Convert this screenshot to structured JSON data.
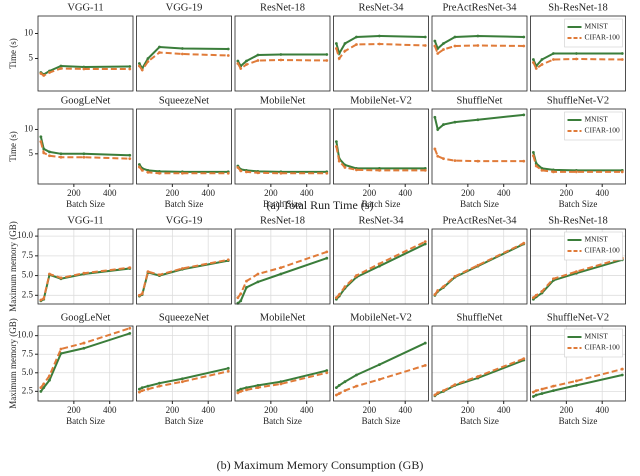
{
  "captions": [
    "(a) Total Run Time (s)",
    "(b) Maximum Memory Consumption (GB)"
  ],
  "chart_data": [
    {
      "type": "line",
      "title": "VGG-11",
      "ylabel": "Time (s)",
      "x": [
        16,
        32,
        64,
        128,
        256,
        512
      ],
      "xlim": [
        0,
        530
      ],
      "ylim": [
        -1.5,
        13.5
      ],
      "yticks": [
        5,
        10
      ],
      "series": [
        {
          "color": "#3a7d3a",
          "values": [
            2.2,
            1.8,
            2.5,
            3.5,
            3.3,
            3.4
          ]
        },
        {
          "color": "#e07b39",
          "dash": true,
          "values": [
            2.0,
            1.6,
            2.2,
            3.0,
            2.9,
            2.9
          ]
        }
      ]
    },
    {
      "type": "line",
      "title": "VGG-19",
      "x": [
        16,
        32,
        64,
        128,
        256,
        512
      ],
      "xlim": [
        0,
        530
      ],
      "ylim": [
        -1.5,
        13.5
      ],
      "series": [
        {
          "color": "#3a7d3a",
          "values": [
            4,
            3,
            5,
            7.3,
            7,
            6.9
          ]
        },
        {
          "color": "#e07b39",
          "dash": true,
          "values": [
            3.5,
            2.7,
            4.4,
            6.2,
            5.9,
            5.6
          ]
        }
      ]
    },
    {
      "type": "line",
      "title": "ResNet-18",
      "x": [
        16,
        32,
        64,
        128,
        256,
        512
      ],
      "xlim": [
        0,
        530
      ],
      "ylim": [
        -1.5,
        13.5
      ],
      "series": [
        {
          "color": "#3a7d3a",
          "values": [
            4.5,
            3.5,
            4.5,
            5.7,
            5.8,
            5.8
          ]
        },
        {
          "color": "#e07b39",
          "dash": true,
          "values": [
            4,
            3,
            3.8,
            4.6,
            4.7,
            4.6
          ]
        }
      ]
    },
    {
      "type": "line",
      "title": "ResNet-34",
      "x": [
        16,
        32,
        64,
        128,
        256,
        512
      ],
      "xlim": [
        0,
        530
      ],
      "ylim": [
        -1.5,
        13.5
      ],
      "series": [
        {
          "color": "#3a7d3a",
          "values": [
            8,
            6,
            8,
            9.3,
            9.5,
            9.3
          ]
        },
        {
          "color": "#e07b39",
          "dash": true,
          "values": [
            7,
            5,
            6.5,
            7.8,
            7.9,
            7.6
          ]
        }
      ]
    },
    {
      "type": "line",
      "title": "PreActResNet-34",
      "x": [
        16,
        32,
        64,
        128,
        256,
        512
      ],
      "xlim": [
        0,
        530
      ],
      "ylim": [
        -1.5,
        13.5
      ],
      "series": [
        {
          "color": "#3a7d3a",
          "values": [
            8.5,
            7,
            8,
            9.3,
            9.5,
            9.3
          ]
        },
        {
          "color": "#e07b39",
          "dash": true,
          "values": [
            7.5,
            6,
            6.8,
            7.5,
            7.6,
            7.5
          ]
        }
      ]
    },
    {
      "type": "line",
      "title": "Sh-ResNet-18",
      "legend": "upper right",
      "x": [
        16,
        32,
        64,
        128,
        256,
        512
      ],
      "xlim": [
        0,
        530
      ],
      "ylim": [
        -1.5,
        13.5
      ],
      "series": [
        {
          "name": "MNIST",
          "color": "#3a7d3a",
          "values": [
            4.8,
            3.5,
            4.8,
            6,
            6,
            6
          ]
        },
        {
          "name": "CIFAR-100",
          "color": "#e07b39",
          "dash": true,
          "values": [
            4.2,
            3,
            3.8,
            4.8,
            4.9,
            4.8
          ]
        }
      ]
    },
    {
      "type": "line",
      "title": "GoogLeNet",
      "ylabel": "Time (s)",
      "xlabel": "Batch Size",
      "x": [
        16,
        32,
        64,
        128,
        256,
        512
      ],
      "xlim": [
        0,
        530
      ],
      "xticks": [
        200,
        400
      ],
      "ylim": [
        -1.2,
        14.2
      ],
      "yticks": [
        5,
        10
      ],
      "series": [
        {
          "color": "#3a7d3a",
          "values": [
            8.5,
            6,
            5.4,
            5,
            5,
            4.7
          ]
        },
        {
          "color": "#e07b39",
          "dash": true,
          "values": [
            7.5,
            5.2,
            4.6,
            4.3,
            4.3,
            4.0
          ]
        }
      ]
    },
    {
      "type": "line",
      "title": "SqueezeNet",
      "xlabel": "Batch Size",
      "x": [
        16,
        32,
        64,
        128,
        256,
        512
      ],
      "xlim": [
        0,
        530
      ],
      "xticks": [
        200,
        400
      ],
      "ylim": [
        -1.2,
        14.2
      ],
      "series": [
        {
          "color": "#3a7d3a",
          "values": [
            2.8,
            2,
            1.6,
            1.4,
            1.3,
            1.3
          ]
        },
        {
          "color": "#e07b39",
          "dash": true,
          "values": [
            2.3,
            1.6,
            1.2,
            1,
            1,
            1
          ]
        }
      ]
    },
    {
      "type": "line",
      "title": "MobileNet",
      "xlabel": "Batch Size",
      "x": [
        16,
        32,
        64,
        128,
        256,
        512
      ],
      "xlim": [
        0,
        530
      ],
      "xticks": [
        200,
        400
      ],
      "ylim": [
        -1.2,
        14.2
      ],
      "series": [
        {
          "color": "#3a7d3a",
          "values": [
            2.5,
            1.8,
            1.6,
            1.4,
            1.3,
            1.3
          ]
        },
        {
          "color": "#e07b39",
          "dash": true,
          "values": [
            2.2,
            1.5,
            1.3,
            1.1,
            1,
            1
          ]
        }
      ]
    },
    {
      "type": "line",
      "title": "MobileNet-V2",
      "xlabel": "Batch Size",
      "x": [
        16,
        32,
        64,
        128,
        256,
        512
      ],
      "xlim": [
        0,
        530
      ],
      "xticks": [
        200,
        400
      ],
      "ylim": [
        -1.2,
        14.2
      ],
      "series": [
        {
          "color": "#3a7d3a",
          "values": [
            7.5,
            4,
            2.7,
            2,
            2,
            2
          ]
        },
        {
          "color": "#e07b39",
          "dash": true,
          "values": [
            6.5,
            3.5,
            2.2,
            1.7,
            1.6,
            1.6
          ]
        }
      ]
    },
    {
      "type": "line",
      "title": "ShuffleNet",
      "xlabel": "Batch Size",
      "x": [
        16,
        32,
        64,
        128,
        256,
        512
      ],
      "xlim": [
        0,
        530
      ],
      "xticks": [
        200,
        400
      ],
      "ylim": [
        -1.2,
        14.2
      ],
      "series": [
        {
          "color": "#3a7d3a",
          "values": [
            12.5,
            10,
            11,
            11.5,
            12,
            13
          ]
        },
        {
          "color": "#e07b39",
          "dash": true,
          "values": [
            6,
            4.5,
            4,
            3.6,
            3.5,
            3.5
          ]
        }
      ]
    },
    {
      "type": "line",
      "title": "ShuffleNet-V2",
      "xlabel": "Batch Size",
      "legend": "upper right",
      "x": [
        16,
        32,
        64,
        128,
        256,
        512
      ],
      "xlim": [
        0,
        530
      ],
      "xticks": [
        200,
        400
      ],
      "ylim": [
        -1.2,
        14.2
      ],
      "series": [
        {
          "name": "MNIST",
          "color": "#3a7d3a",
          "values": [
            5.3,
            3,
            2,
            1.7,
            1.6,
            1.6
          ]
        },
        {
          "name": "CIFAR-100",
          "color": "#e07b39",
          "dash": true,
          "values": [
            4.6,
            2.5,
            1.6,
            1.3,
            1.3,
            1.3
          ]
        }
      ]
    },
    {
      "type": "line",
      "title": "VGG-11",
      "ylabel": "Maximum memory (GB)",
      "grid": true,
      "x": [
        16,
        32,
        64,
        128,
        256,
        512
      ],
      "xlim": [
        0,
        530
      ],
      "ylim": [
        1.4,
        10.9
      ],
      "yticks": [
        2.5,
        {
          "value": 5,
          "label": "5.0"
        },
        7.5,
        {
          "value": 10,
          "label": "10.0"
        }
      ],
      "series": [
        {
          "color": "#3a7d3a",
          "values": [
            1.8,
            2,
            5.1,
            4.6,
            5.2,
            5.9
          ]
        },
        {
          "color": "#e07b39",
          "dash": true,
          "values": [
            1.9,
            2.1,
            5.2,
            4.7,
            5.3,
            6.0
          ]
        }
      ]
    },
    {
      "type": "line",
      "title": "VGG-19",
      "grid": true,
      "x": [
        16,
        32,
        64,
        128,
        256,
        512
      ],
      "xlim": [
        0,
        530
      ],
      "ylim": [
        1.4,
        10.9
      ],
      "series": [
        {
          "color": "#3a7d3a",
          "values": [
            2.4,
            2.6,
            5.4,
            5.0,
            5.8,
            6.9
          ]
        },
        {
          "color": "#e07b39",
          "dash": true,
          "values": [
            2.5,
            2.7,
            5.5,
            5.1,
            5.9,
            7.0
          ]
        }
      ]
    },
    {
      "type": "line",
      "title": "ResNet-18",
      "grid": true,
      "x": [
        16,
        32,
        64,
        128,
        256,
        512
      ],
      "xlim": [
        0,
        530
      ],
      "ylim": [
        1.4,
        10.9
      ],
      "series": [
        {
          "color": "#3a7d3a",
          "values": [
            1.5,
            1.8,
            3.5,
            4.2,
            5.2,
            7.2
          ]
        },
        {
          "color": "#e07b39",
          "dash": true,
          "values": [
            2.2,
            2.7,
            4.3,
            5.2,
            6,
            8
          ]
        }
      ]
    },
    {
      "type": "line",
      "title": "ResNet-34",
      "grid": true,
      "x": [
        16,
        32,
        64,
        128,
        256,
        512
      ],
      "xlim": [
        0,
        530
      ],
      "ylim": [
        1.4,
        10.9
      ],
      "series": [
        {
          "color": "#3a7d3a",
          "values": [
            2.0,
            2.4,
            3.4,
            4.8,
            6.2,
            9.0
          ]
        },
        {
          "color": "#e07b39",
          "dash": true,
          "values": [
            2.2,
            2.6,
            3.6,
            5.0,
            6.5,
            9.3
          ]
        }
      ]
    },
    {
      "type": "line",
      "title": "PreActResNet-34",
      "grid": true,
      "x": [
        16,
        32,
        64,
        128,
        256,
        512
      ],
      "xlim": [
        0,
        530
      ],
      "ylim": [
        1.4,
        10.9
      ],
      "series": [
        {
          "color": "#3a7d3a",
          "values": [
            2.5,
            3,
            3.5,
            4.8,
            6.2,
            9
          ]
        },
        {
          "color": "#e07b39",
          "dash": true,
          "values": [
            2.6,
            3.1,
            3.6,
            4.9,
            6.3,
            9.1
          ]
        }
      ]
    },
    {
      "type": "line",
      "title": "Sh-ResNet-18",
      "grid": true,
      "legend": "upper right",
      "x": [
        16,
        32,
        64,
        128,
        256,
        512
      ],
      "xlim": [
        0,
        530
      ],
      "ylim": [
        1.4,
        10.9
      ],
      "series": [
        {
          "name": "MNIST",
          "color": "#3a7d3a",
          "values": [
            2,
            2.3,
            2.8,
            4.4,
            5.3,
            7
          ]
        },
        {
          "name": "CIFAR-100",
          "color": "#e07b39",
          "dash": true,
          "values": [
            2.2,
            2.5,
            3,
            4.6,
            5.5,
            7.2
          ]
        }
      ]
    },
    {
      "type": "line",
      "title": "GoogLeNet",
      "ylabel": "Maximum memory (GB)",
      "xlabel": "Batch Size",
      "grid": true,
      "x": [
        16,
        32,
        64,
        128,
        256,
        512
      ],
      "xlim": [
        0,
        530
      ],
      "xticks": [
        200,
        400
      ],
      "ylim": [
        1.2,
        11.3
      ],
      "yticks": [
        2.5,
        {
          "value": 5,
          "label": "5.0"
        },
        7.5,
        {
          "value": 10,
          "label": "10.0"
        }
      ],
      "series": [
        {
          "color": "#3a7d3a",
          "values": [
            2.5,
            3,
            4,
            7.6,
            8.3,
            10.3
          ]
        },
        {
          "color": "#e07b39",
          "dash": true,
          "values": [
            3,
            3.5,
            4.6,
            8.2,
            9,
            11
          ]
        }
      ]
    },
    {
      "type": "line",
      "title": "SqueezeNet",
      "xlabel": "Batch Size",
      "grid": true,
      "x": [
        16,
        32,
        64,
        128,
        256,
        512
      ],
      "xlim": [
        0,
        530
      ],
      "xticks": [
        200,
        400
      ],
      "ylim": [
        1.2,
        11.3
      ],
      "series": [
        {
          "color": "#3a7d3a",
          "values": [
            2.8,
            3,
            3.2,
            3.6,
            4.2,
            5.6
          ]
        },
        {
          "color": "#e07b39",
          "dash": true,
          "values": [
            2.4,
            2.6,
            2.8,
            3.2,
            3.8,
            5.2
          ]
        }
      ]
    },
    {
      "type": "line",
      "title": "MobileNet",
      "xlabel": "Batch Size",
      "grid": true,
      "x": [
        16,
        32,
        64,
        128,
        256,
        512
      ],
      "xlim": [
        0,
        530
      ],
      "xticks": [
        200,
        400
      ],
      "ylim": [
        1.2,
        11.3
      ],
      "series": [
        {
          "color": "#3a7d3a",
          "values": [
            2.6,
            2.8,
            3,
            3.3,
            3.8,
            5.3
          ]
        },
        {
          "color": "#e07b39",
          "dash": true,
          "values": [
            2.3,
            2.5,
            2.7,
            3,
            3.5,
            5
          ]
        }
      ]
    },
    {
      "type": "line",
      "title": "MobileNet-V2",
      "xlabel": "Batch Size",
      "grid": true,
      "x": [
        16,
        32,
        64,
        128,
        256,
        512
      ],
      "xlim": [
        0,
        530
      ],
      "xticks": [
        200,
        400
      ],
      "ylim": [
        1.2,
        11.3
      ],
      "series": [
        {
          "color": "#3a7d3a",
          "values": [
            3,
            3.3,
            3.8,
            4.7,
            6.1,
            9
          ]
        },
        {
          "color": "#e07b39",
          "dash": true,
          "values": [
            2,
            2.2,
            2.6,
            3.2,
            4.1,
            6
          ]
        }
      ]
    },
    {
      "type": "line",
      "title": "ShuffleNet",
      "xlabel": "Batch Size",
      "grid": true,
      "x": [
        16,
        32,
        64,
        128,
        256,
        512
      ],
      "xlim": [
        0,
        530
      ],
      "xticks": [
        200,
        400
      ],
      "ylim": [
        1.2,
        11.3
      ],
      "series": [
        {
          "color": "#3a7d3a",
          "values": [
            1.9,
            2.2,
            2.5,
            3.3,
            4.3,
            6.7
          ]
        },
        {
          "color": "#e07b39",
          "dash": true,
          "values": [
            2,
            2.3,
            2.6,
            3.4,
            4.5,
            6.9
          ]
        }
      ]
    },
    {
      "type": "line",
      "title": "ShuffleNet-V2",
      "xlabel": "Batch Size",
      "grid": true,
      "legend": "upper right",
      "x": [
        16,
        32,
        64,
        128,
        256,
        512
      ],
      "xlim": [
        0,
        530
      ],
      "xticks": [
        200,
        400
      ],
      "ylim": [
        1.2,
        11.3
      ],
      "series": [
        {
          "name": "MNIST",
          "color": "#3a7d3a",
          "values": [
            1.8,
            2,
            2.2,
            2.6,
            3.3,
            4.7
          ]
        },
        {
          "name": "CIFAR-100",
          "color": "#e07b39",
          "dash": true,
          "values": [
            2.4,
            2.6,
            2.8,
            3.2,
            3.9,
            5.5
          ]
        }
      ]
    }
  ]
}
